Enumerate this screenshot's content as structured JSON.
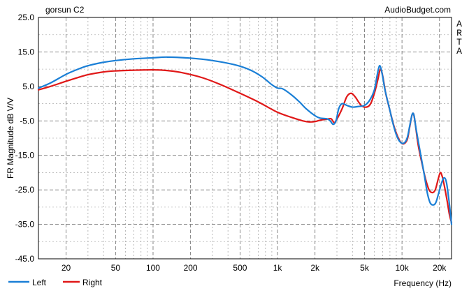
{
  "chart_data": {
    "type": "line",
    "title": "gorsun C2",
    "watermark": "AudioBudget.com",
    "side_label": [
      "A",
      "R",
      "T",
      "A"
    ],
    "xlabel": "Frequency (Hz)",
    "ylabel": "FR Magnitude dB V/V",
    "x_scale": "log",
    "xlim": [
      12,
      25000
    ],
    "ylim": [
      -45,
      25
    ],
    "grid": true,
    "legend_position": "bottom-left",
    "y_ticks": [
      {
        "value": 25,
        "label": "25.0"
      },
      {
        "value": 15,
        "label": "15.0"
      },
      {
        "value": 5,
        "label": "5.0"
      },
      {
        "value": -5,
        "label": "-5.0"
      },
      {
        "value": -15,
        "label": "-15.0"
      },
      {
        "value": -25,
        "label": "-25.0"
      },
      {
        "value": -35,
        "label": "-35.0"
      },
      {
        "value": -45,
        "label": "-45.0"
      }
    ],
    "x_ticks": [
      {
        "value": 20,
        "label": "20"
      },
      {
        "value": 50,
        "label": "50"
      },
      {
        "value": 100,
        "label": "100"
      },
      {
        "value": 200,
        "label": "200"
      },
      {
        "value": 500,
        "label": "500"
      },
      {
        "value": 1000,
        "label": "1k"
      },
      {
        "value": 2000,
        "label": "2k"
      },
      {
        "value": 5000,
        "label": "5k"
      },
      {
        "value": 10000,
        "label": "10k"
      },
      {
        "value": 20000,
        "label": "20k"
      }
    ],
    "series": [
      {
        "name": "Left",
        "color": "#1a7fd6",
        "points": [
          [
            12,
            4.5
          ],
          [
            15,
            6
          ],
          [
            20,
            8.5
          ],
          [
            25,
            10
          ],
          [
            30,
            11
          ],
          [
            40,
            12
          ],
          [
            50,
            12.5
          ],
          [
            70,
            13
          ],
          [
            100,
            13.3
          ],
          [
            130,
            13.5
          ],
          [
            200,
            13.2
          ],
          [
            300,
            12.5
          ],
          [
            450,
            11.3
          ],
          [
            600,
            9.8
          ],
          [
            750,
            7.8
          ],
          [
            900,
            5.5
          ],
          [
            1000,
            4.5
          ],
          [
            1100,
            4.3
          ],
          [
            1300,
            2.5
          ],
          [
            1500,
            0.5
          ],
          [
            1700,
            -1.5
          ],
          [
            2000,
            -3.5
          ],
          [
            2200,
            -4.2
          ],
          [
            2500,
            -4.4
          ],
          [
            2650,
            -5
          ],
          [
            2800,
            -6
          ],
          [
            2950,
            -5
          ],
          [
            3100,
            -1.5
          ],
          [
            3300,
            0
          ],
          [
            3600,
            -0.5
          ],
          [
            4000,
            -1
          ],
          [
            4500,
            -0.8
          ],
          [
            5000,
            -0.5
          ],
          [
            5500,
            1
          ],
          [
            6000,
            4
          ],
          [
            6300,
            8
          ],
          [
            6600,
            11
          ],
          [
            6900,
            9
          ],
          [
            7300,
            4
          ],
          [
            8000,
            -2
          ],
          [
            8500,
            -6
          ],
          [
            9000,
            -9
          ],
          [
            9600,
            -11
          ],
          [
            10300,
            -11.5
          ],
          [
            11000,
            -10
          ],
          [
            11600,
            -6
          ],
          [
            12100,
            -3
          ],
          [
            12500,
            -3.5
          ],
          [
            13000,
            -7.5
          ],
          [
            14000,
            -14
          ],
          [
            15000,
            -20
          ],
          [
            16000,
            -26
          ],
          [
            17000,
            -29
          ],
          [
            18500,
            -29
          ],
          [
            19700,
            -26
          ],
          [
            20800,
            -23
          ],
          [
            21800,
            -21.5
          ],
          [
            22800,
            -23
          ],
          [
            24000,
            -29
          ],
          [
            25000,
            -35
          ]
        ]
      },
      {
        "name": "Right",
        "color": "#e01818",
        "points": [
          [
            12,
            4
          ],
          [
            15,
            5
          ],
          [
            20,
            6.5
          ],
          [
            25,
            7.6
          ],
          [
            30,
            8.4
          ],
          [
            40,
            9.2
          ],
          [
            50,
            9.5
          ],
          [
            70,
            9.7
          ],
          [
            100,
            9.8
          ],
          [
            130,
            9.6
          ],
          [
            170,
            9
          ],
          [
            250,
            7.5
          ],
          [
            350,
            5.5
          ],
          [
            500,
            3
          ],
          [
            700,
            0.5
          ],
          [
            1000,
            -2.5
          ],
          [
            1300,
            -4
          ],
          [
            1600,
            -5
          ],
          [
            1800,
            -5.3
          ],
          [
            2000,
            -5.2
          ],
          [
            2200,
            -4.8
          ],
          [
            2500,
            -4.5
          ],
          [
            2700,
            -4.4
          ],
          [
            2850,
            -5.5
          ],
          [
            3000,
            -4.5
          ],
          [
            3300,
            -1.5
          ],
          [
            3600,
            2
          ],
          [
            3900,
            3
          ],
          [
            4200,
            2
          ],
          [
            4700,
            -0.5
          ],
          [
            5200,
            -1
          ],
          [
            5600,
            0
          ],
          [
            6000,
            3
          ],
          [
            6400,
            7
          ],
          [
            6700,
            10
          ],
          [
            7000,
            8
          ],
          [
            7400,
            3
          ],
          [
            8000,
            -2
          ],
          [
            8700,
            -7
          ],
          [
            9500,
            -10.5
          ],
          [
            10200,
            -11.7
          ],
          [
            11000,
            -10.5
          ],
          [
            11500,
            -7
          ],
          [
            12000,
            -3.5
          ],
          [
            12400,
            -3
          ],
          [
            12800,
            -6
          ],
          [
            13500,
            -12
          ],
          [
            14500,
            -17.5
          ],
          [
            15500,
            -22
          ],
          [
            16500,
            -25
          ],
          [
            17500,
            -25.8
          ],
          [
            18500,
            -25
          ],
          [
            19500,
            -22
          ],
          [
            20300,
            -20
          ],
          [
            21000,
            -21
          ],
          [
            21800,
            -23.5
          ],
          [
            23000,
            -28
          ],
          [
            24000,
            -32
          ],
          [
            25000,
            -34.5
          ]
        ]
      }
    ]
  }
}
